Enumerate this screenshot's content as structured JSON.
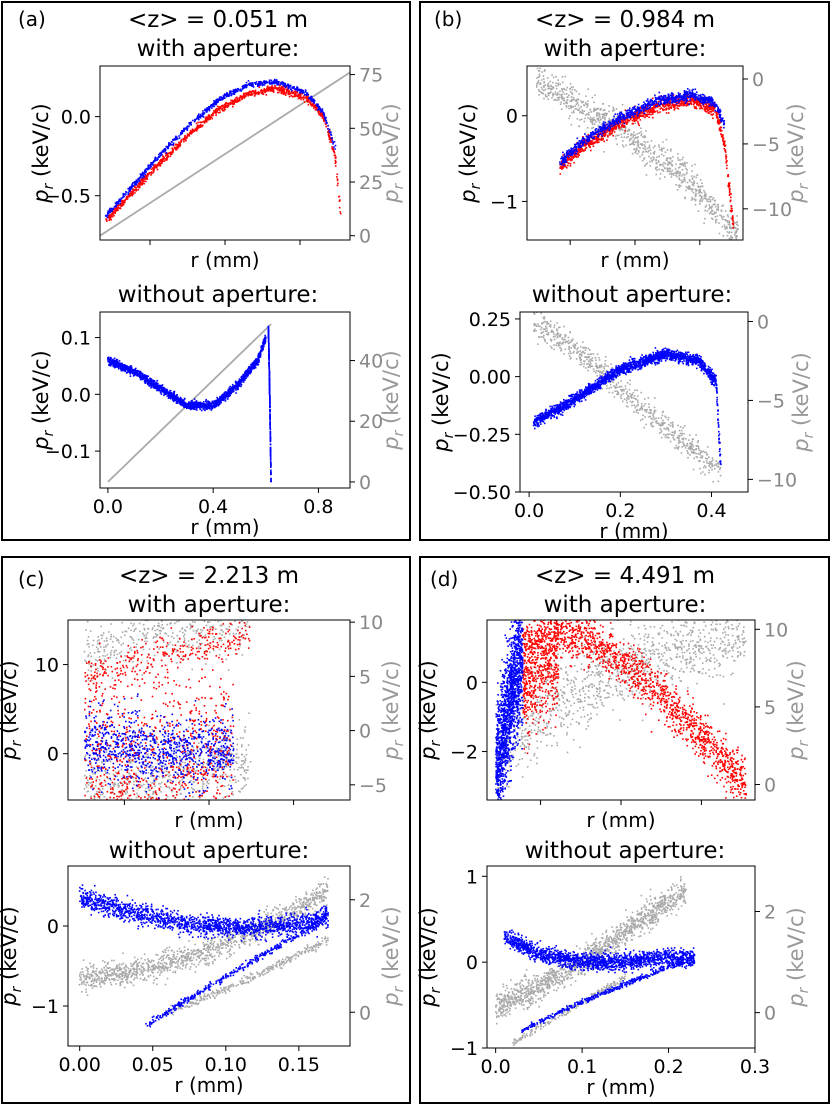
{
  "figure": {
    "panels": [
      {
        "tag": "(a)",
        "title": "<z> = 0.051 m"
      },
      {
        "tag": "(b)",
        "title": "<z> = 0.984 m"
      },
      {
        "tag": "(c)",
        "title": "<z> = 2.213 m"
      },
      {
        "tag": "(d)",
        "title": "<z> = 4.491 m"
      }
    ],
    "subtitle_with": "with aperture:",
    "subtitle_without": "without aperture:",
    "xlabel": "r (mm)",
    "ylabel_main": "p",
    "ylabel_sub": "r",
    "ylabel_unit": " (keV/c)",
    "colors": {
      "frame": "#000000",
      "axis": "#000000",
      "blue": "#0000ff",
      "red": "#ff0000",
      "gray": "#aaaaaa",
      "gray_label": "#999999"
    }
  },
  "chart_data": [
    {
      "id": "a-with",
      "panel": "(a)",
      "type": "scatter",
      "subtitle": "with aperture:",
      "xlabel": "r (mm)",
      "ylabel": "p_r (keV/c)",
      "ylabel2": "p_r (keV/c)",
      "xlim": [
        0,
        0.85
      ],
      "ylim": [
        -0.78,
        0.32
      ],
      "y2lim": [
        -2,
        79
      ],
      "xticks": [],
      "xtick_labels": [],
      "yticks": [
        0.0,
        -0.5
      ],
      "ytick_labels": [
        "0.0",
        "−0.5"
      ],
      "y2ticks": [
        0,
        25,
        50,
        75
      ],
      "y2tick_labels": [
        "0",
        "25",
        "50",
        "75"
      ],
      "series": [
        {
          "name": "gray",
          "color": "#aaaaaa",
          "axis": "y2",
          "shape": "line",
          "x": [
            0.0,
            0.85
          ],
          "y": [
            0,
            76
          ],
          "width": 0.0,
          "count": 0
        },
        {
          "name": "red",
          "color": "#ff0000",
          "axis": "y",
          "shape": "band",
          "x": [
            0.02,
            0.1,
            0.2,
            0.3,
            0.4,
            0.5,
            0.6,
            0.7,
            0.76,
            0.8,
            0.82
          ],
          "y": [
            -0.66,
            -0.5,
            -0.3,
            -0.12,
            0.04,
            0.14,
            0.18,
            0.12,
            0.0,
            -0.25,
            -0.65
          ],
          "width": 0.05,
          "count": 1000
        },
        {
          "name": "blue",
          "color": "#0000ff",
          "axis": "y",
          "shape": "band",
          "x": [
            0.02,
            0.1,
            0.2,
            0.3,
            0.4,
            0.5,
            0.6,
            0.7,
            0.76,
            0.8
          ],
          "y": [
            -0.63,
            -0.46,
            -0.25,
            -0.06,
            0.1,
            0.2,
            0.22,
            0.15,
            0.02,
            -0.2
          ],
          "width": 0.04,
          "count": 800
        }
      ]
    },
    {
      "id": "a-without",
      "panel": "(a)",
      "type": "scatter",
      "subtitle": "without aperture:",
      "xlabel": "r (mm)",
      "ylabel": "p_r (keV/c)",
      "ylabel2": "p_r (keV/c)",
      "xlim": [
        -0.03,
        0.92
      ],
      "ylim": [
        -0.165,
        0.145
      ],
      "y2lim": [
        -2,
        56
      ],
      "xticks": [
        0.0,
        0.4,
        0.8
      ],
      "xtick_labels": [
        "0.0",
        "0.4",
        "0.8"
      ],
      "yticks": [
        0.1,
        0.0,
        -0.1
      ],
      "ytick_labels": [
        "0.1",
        "0.0",
        "−0.1"
      ],
      "y2ticks": [
        0,
        20,
        40
      ],
      "y2tick_labels": [
        "0",
        "20",
        "40"
      ],
      "series": [
        {
          "name": "gray",
          "color": "#aaaaaa",
          "axis": "y2",
          "shape": "line",
          "x": [
            0.0,
            0.62
          ],
          "y": [
            0,
            52
          ],
          "width": 0.0,
          "count": 0
        },
        {
          "name": "blue",
          "color": "#0000ff",
          "axis": "y",
          "shape": "band",
          "x": [
            0.0,
            0.1,
            0.2,
            0.3,
            0.4,
            0.5,
            0.57,
            0.6
          ],
          "y": [
            0.06,
            0.04,
            0.01,
            -0.02,
            -0.02,
            0.02,
            0.06,
            0.1
          ],
          "width": 0.06,
          "count": 1800
        },
        {
          "name": "blue-edge",
          "color": "#0000ff",
          "axis": "y",
          "shape": "band",
          "x": [
            0.61,
            0.615,
            0.62
          ],
          "y": [
            0.12,
            0.0,
            -0.155
          ],
          "width": 0.01,
          "count": 300
        }
      ]
    },
    {
      "id": "b-with",
      "panel": "(b)",
      "type": "scatter",
      "subtitle": "with aperture:",
      "xlabel": "r (mm)",
      "ylabel": "p_r (keV/c)",
      "ylabel2": "p_r (keV/c)",
      "xlim": [
        0,
        0.46
      ],
      "ylim": [
        -1.45,
        0.58
      ],
      "y2lim": [
        -12.4,
        1.0
      ],
      "xticks": [],
      "xtick_labels": [],
      "yticks": [
        0,
        -1
      ],
      "ytick_labels": [
        "0",
        "−1"
      ],
      "y2ticks": [
        0,
        -5,
        -10
      ],
      "y2tick_labels": [
        "0",
        "−5",
        "−10"
      ],
      "series": [
        {
          "name": "gray",
          "color": "#aaaaaa",
          "axis": "y2",
          "shape": "band",
          "x": [
            0.02,
            0.1,
            0.2,
            0.3,
            0.36,
            0.4,
            0.43,
            0.45
          ],
          "y": [
            0,
            -1.8,
            -4.0,
            -6.6,
            -8.4,
            -10.0,
            -11.2,
            -11.8
          ],
          "width": 0.25,
          "count": 900
        },
        {
          "name": "red",
          "color": "#ff0000",
          "axis": "y",
          "shape": "band",
          "x": [
            0.07,
            0.12,
            0.2,
            0.28,
            0.35,
            0.4,
            0.42,
            0.44
          ],
          "y": [
            -0.6,
            -0.35,
            -0.08,
            0.12,
            0.18,
            0.08,
            -0.3,
            -1.3
          ],
          "width": 0.1,
          "count": 1200
        },
        {
          "name": "blue",
          "color": "#0000ff",
          "axis": "y",
          "shape": "band",
          "x": [
            0.07,
            0.12,
            0.2,
            0.28,
            0.35,
            0.4,
            0.42
          ],
          "y": [
            -0.55,
            -0.3,
            -0.02,
            0.18,
            0.24,
            0.15,
            -0.1
          ],
          "width": 0.08,
          "count": 900
        }
      ]
    },
    {
      "id": "b-without",
      "panel": "(b)",
      "type": "scatter",
      "subtitle": "without aperture:",
      "xlabel": "r (mm)",
      "ylabel": "p_r (keV/c)",
      "ylabel2": "p_r (keV/c)",
      "xlim": [
        -0.02,
        0.48
      ],
      "ylim": [
        -0.5,
        0.28
      ],
      "y2lim": [
        -10.8,
        0.6
      ],
      "xticks": [
        0.0,
        0.2,
        0.4
      ],
      "xtick_labels": [
        "0.0",
        "0.2",
        "0.4"
      ],
      "yticks": [
        0.25,
        0.0,
        -0.25,
        -0.5
      ],
      "ytick_labels": [
        "0.25",
        "0.00",
        "−0.25",
        "−0.50"
      ],
      "y2ticks": [
        0,
        -5,
        -10
      ],
      "y2tick_labels": [
        "0",
        "−5",
        "−10"
      ],
      "series": [
        {
          "name": "gray",
          "color": "#aaaaaa",
          "axis": "y2",
          "shape": "band",
          "x": [
            0.01,
            0.1,
            0.2,
            0.3,
            0.38,
            0.42
          ],
          "y": [
            0,
            -1.8,
            -4.2,
            -6.7,
            -8.6,
            -9.6
          ],
          "width": 0.2,
          "count": 700
        },
        {
          "name": "blue",
          "color": "#0000ff",
          "axis": "y",
          "shape": "band",
          "x": [
            0.01,
            0.1,
            0.2,
            0.3,
            0.37,
            0.41,
            0.42
          ],
          "y": [
            -0.2,
            -0.1,
            0.03,
            0.1,
            0.07,
            -0.02,
            -0.38
          ],
          "width": 0.08,
          "count": 2000
        }
      ]
    },
    {
      "id": "c-with",
      "panel": "(c)",
      "type": "scatter",
      "subtitle": "with aperture:",
      "xlabel": "r (mm)",
      "ylabel": "p_r (keV/c)",
      "ylabel2": "p_r (keV/c)",
      "xlim": [
        0,
        0.34
      ],
      "ylim": [
        -5.2,
        15.0
      ],
      "y2lim": [
        -6.4,
        10.2
      ],
      "xticks": [],
      "xtick_labels": [],
      "yticks": [
        10,
        0
      ],
      "ytick_labels": [
        "10",
        "0"
      ],
      "y2ticks": [
        10,
        5,
        0,
        -5
      ],
      "y2tick_labels": [
        "10",
        "5",
        "0",
        "−5"
      ],
      "series": [
        {
          "name": "gray-top",
          "color": "#aaaaaa",
          "axis": "y2",
          "shape": "band",
          "x": [
            0.02,
            0.08,
            0.15,
            0.22
          ],
          "y": [
            7.2,
            8.4,
            9.2,
            9.7
          ],
          "width": 0.4,
          "count": 400
        },
        {
          "name": "gray-bottom",
          "color": "#aaaaaa",
          "axis": "y2",
          "shape": "band",
          "x": [
            0.02,
            0.08,
            0.15,
            0.22
          ],
          "y": [
            -5.0,
            -4.5,
            -3.5,
            -2.6
          ],
          "width": 0.5,
          "count": 600
        },
        {
          "name": "red-top",
          "color": "#ff0000",
          "axis": "y",
          "shape": "band",
          "x": [
            0.02,
            0.08,
            0.15,
            0.22
          ],
          "y": [
            8.0,
            10.0,
            11.8,
            13.2
          ],
          "width": 0.3,
          "count": 300
        },
        {
          "name": "red-low",
          "color": "#ff0000",
          "axis": "y",
          "shape": "band",
          "x": [
            0.02,
            0.06,
            0.1,
            0.15,
            0.2
          ],
          "y": [
            -1.5,
            -2.5,
            -2.0,
            -0.5,
            0.5
          ],
          "width": 1.3,
          "count": 900
        },
        {
          "name": "blue",
          "color": "#0000ff",
          "axis": "y",
          "shape": "band",
          "x": [
            0.02,
            0.06,
            0.1,
            0.15,
            0.2
          ],
          "y": [
            1.5,
            0.9,
            0.4,
            0.2,
            0.3
          ],
          "width": 0.5,
          "count": 900
        }
      ]
    },
    {
      "id": "c-without",
      "panel": "(c)",
      "type": "scatter",
      "subtitle": "without aperture:",
      "xlabel": "r (mm)",
      "ylabel": "p_r (keV/c)",
      "ylabel2": "p_r (keV/c)",
      "xlim": [
        -0.008,
        0.185
      ],
      "ylim": [
        -1.5,
        0.75
      ],
      "y2lim": [
        -0.6,
        2.6
      ],
      "xticks": [
        0.0,
        0.05,
        0.1,
        0.15
      ],
      "xtick_labels": [
        "0.00",
        "0.05",
        "0.10",
        "0.15"
      ],
      "yticks": [
        0,
        -1
      ],
      "ytick_labels": [
        "0",
        "−1"
      ],
      "y2ticks": [
        2,
        0
      ],
      "y2tick_labels": [
        "2",
        "0"
      ],
      "series": [
        {
          "name": "gray-cloud",
          "color": "#aaaaaa",
          "axis": "y2",
          "shape": "band",
          "x": [
            0.0,
            0.04,
            0.08,
            0.12,
            0.16,
            0.17
          ],
          "y": [
            0.6,
            0.75,
            1.0,
            1.45,
            2.0,
            2.2
          ],
          "width": 0.18,
          "count": 1200
        },
        {
          "name": "gray-line",
          "color": "#aaaaaa",
          "axis": "y2",
          "shape": "band",
          "x": [
            0.06,
            0.1,
            0.14,
            0.17
          ],
          "y": [
            0.0,
            0.4,
            0.9,
            1.3
          ],
          "width": 0.06,
          "count": 300
        },
        {
          "name": "blue-top",
          "color": "#0000ff",
          "axis": "y",
          "shape": "band",
          "x": [
            0.0,
            0.04,
            0.08,
            0.12,
            0.16,
            0.17
          ],
          "y": [
            0.35,
            0.15,
            0.0,
            -0.02,
            0.05,
            0.12
          ],
          "width": 0.15,
          "count": 1600
        },
        {
          "name": "blue-line",
          "color": "#0000ff",
          "axis": "y",
          "shape": "band",
          "x": [
            0.045,
            0.08,
            0.12,
            0.16,
            0.17
          ],
          "y": [
            -1.25,
            -0.85,
            -0.42,
            0.0,
            0.15
          ],
          "width": 0.05,
          "count": 400
        }
      ]
    },
    {
      "id": "d-with",
      "panel": "(d)",
      "type": "scatter",
      "subtitle": "with aperture:",
      "xlabel": "r (mm)",
      "ylabel": "p_r (keV/c)",
      "ylabel2": "p_r (keV/c)",
      "xlim": [
        0,
        0.3
      ],
      "ylim": [
        -3.4,
        1.8
      ],
      "y2lim": [
        -1.0,
        10.6
      ],
      "xticks": [],
      "xtick_labels": [],
      "yticks": [
        0,
        -2
      ],
      "ytick_labels": [
        "0",
        "−2"
      ],
      "y2ticks": [
        10,
        5,
        0
      ],
      "y2tick_labels": [
        "10",
        "5",
        "0"
      ],
      "series": [
        {
          "name": "gray-cloud",
          "color": "#aaaaaa",
          "axis": "y2",
          "shape": "band",
          "x": [
            0.01,
            0.04,
            0.08,
            0.15,
            0.22,
            0.29
          ],
          "y": [
            1.0,
            3.5,
            5.5,
            7.2,
            8.8,
            10.0
          ],
          "width": 0.6,
          "count": 1100
        },
        {
          "name": "red",
          "color": "#ff0000",
          "axis": "y",
          "shape": "band",
          "x": [
            0.04,
            0.06,
            0.08,
            0.1,
            0.13,
            0.18,
            0.23,
            0.29
          ],
          "y": [
            1.0,
            1.4,
            1.5,
            1.4,
            1.0,
            0.0,
            -1.3,
            -3.0
          ],
          "width": 0.35,
          "count": 1500
        },
        {
          "name": "red-lower",
          "color": "#ff0000",
          "axis": "y",
          "shape": "band",
          "x": [
            0.04,
            0.06,
            0.08
          ],
          "y": [
            -0.2,
            0.3,
            0.7
          ],
          "width": 0.7,
          "count": 500
        },
        {
          "name": "blue",
          "color": "#0000ff",
          "axis": "y",
          "shape": "band",
          "x": [
            0.01,
            0.02,
            0.03,
            0.04
          ],
          "y": [
            -2.6,
            -1.3,
            0.0,
            0.8
          ],
          "width": 0.9,
          "count": 1500
        }
      ]
    },
    {
      "id": "d-without",
      "panel": "(d)",
      "type": "scatter",
      "subtitle": "without aperture:",
      "xlabel": "r (mm)",
      "ylabel": "p_r (keV/c)",
      "ylabel2": "p_r (keV/c)",
      "xlim": [
        -0.01,
        0.3
      ],
      "ylim": [
        -1.0,
        1.12
      ],
      "y2lim": [
        -0.7,
        2.9
      ],
      "xticks": [
        0.0,
        0.1,
        0.2,
        0.3
      ],
      "xtick_labels": [
        "0.0",
        "0.1",
        "0.2",
        "0.3"
      ],
      "yticks": [
        1,
        0,
        -1
      ],
      "ytick_labels": [
        "1",
        "0",
        "−1"
      ],
      "y2ticks": [
        2,
        0
      ],
      "y2tick_labels": [
        "2",
        "0"
      ],
      "series": [
        {
          "name": "gray-cloud",
          "color": "#aaaaaa",
          "axis": "y2",
          "shape": "band",
          "x": [
            0.0,
            0.05,
            0.1,
            0.15,
            0.2,
            0.22
          ],
          "y": [
            0.1,
            0.5,
            1.0,
            1.6,
            2.2,
            2.4
          ],
          "width": 0.2,
          "count": 1300
        },
        {
          "name": "gray-line",
          "color": "#aaaaaa",
          "axis": "y2",
          "shape": "band",
          "x": [
            0.02,
            0.06,
            0.1,
            0.15
          ],
          "y": [
            -0.6,
            -0.2,
            0.2,
            0.7
          ],
          "width": 0.05,
          "count": 200
        },
        {
          "name": "blue-top",
          "color": "#0000ff",
          "axis": "y",
          "shape": "band",
          "x": [
            0.01,
            0.05,
            0.1,
            0.15,
            0.2,
            0.23
          ],
          "y": [
            0.3,
            0.1,
            0.0,
            0.0,
            0.05,
            0.05
          ],
          "width": 0.12,
          "count": 1600
        },
        {
          "name": "blue-line",
          "color": "#0000ff",
          "axis": "y",
          "shape": "band",
          "x": [
            0.03,
            0.08,
            0.14,
            0.2,
            0.23
          ],
          "y": [
            -0.8,
            -0.55,
            -0.3,
            -0.05,
            0.0
          ],
          "width": 0.04,
          "count": 400
        }
      ]
    }
  ]
}
